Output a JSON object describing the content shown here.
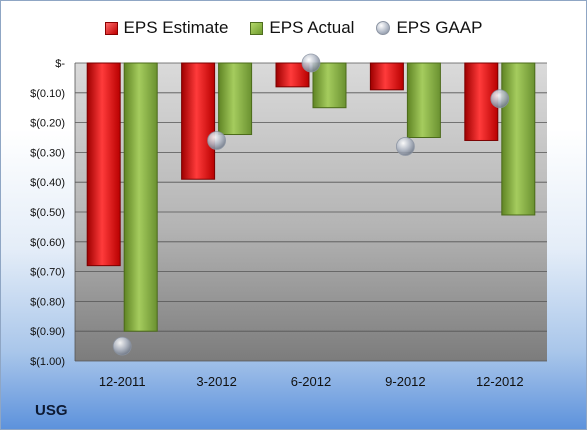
{
  "company": "USG",
  "chart_data": {
    "type": "bar",
    "categories": [
      "12-2011",
      "3-2012",
      "6-2012",
      "9-2012",
      "12-2012"
    ],
    "series": [
      {
        "name": "EPS Estimate",
        "kind": "bar",
        "color": "#d42020",
        "values": [
          -0.68,
          -0.39,
          -0.08,
          -0.09,
          -0.26
        ]
      },
      {
        "name": "EPS Actual",
        "kind": "bar",
        "color": "#8cb04a",
        "values": [
          -0.9,
          -0.24,
          -0.15,
          -0.25,
          -0.51
        ]
      },
      {
        "name": "EPS GAAP",
        "kind": "marker",
        "color": "#b7becb",
        "values": [
          -0.95,
          -0.26,
          0.0,
          -0.28,
          -0.12
        ]
      }
    ],
    "ylim": [
      -1.0,
      0.0
    ],
    "y_ticks": [
      {
        "value": 0.0,
        "label": "$-"
      },
      {
        "value": -0.1,
        "label": "$(0.10)"
      },
      {
        "value": -0.2,
        "label": "$(0.20)"
      },
      {
        "value": -0.3,
        "label": "$(0.30)"
      },
      {
        "value": -0.4,
        "label": "$(0.40)"
      },
      {
        "value": -0.5,
        "label": "$(0.50)"
      },
      {
        "value": -0.6,
        "label": "$(0.60)"
      },
      {
        "value": -0.7,
        "label": "$(0.70)"
      },
      {
        "value": -0.8,
        "label": "$(0.80)"
      },
      {
        "value": -0.9,
        "label": "$(0.90)"
      },
      {
        "value": -1.0,
        "label": "$(1.00)"
      }
    ],
    "grid": true,
    "legend_position": "top"
  }
}
